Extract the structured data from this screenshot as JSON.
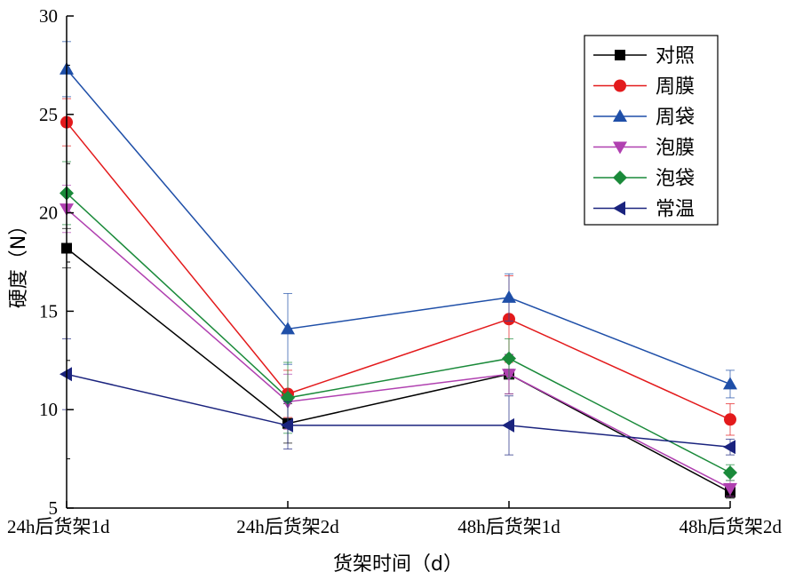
{
  "chart_data": {
    "type": "line",
    "xlabel": "货架时间（d）",
    "ylabel": "硬度（N）",
    "categories": [
      "24h后货架1d",
      "24h后货架2d",
      "48h后货架1d",
      "48h后货架2d"
    ],
    "ylim": [
      5,
      30
    ],
    "yticks": [
      5,
      10,
      15,
      20,
      25,
      30
    ],
    "grid": false,
    "legend_position": "top-right",
    "series": [
      {
        "name": "对照",
        "color": "#000000",
        "marker": "square",
        "values": [
          18.2,
          9.3,
          11.8,
          5.8
        ],
        "errors": [
          1.0,
          1.0,
          1.0,
          0.3
        ]
      },
      {
        "name": "周膜",
        "color": "#e31a1c",
        "marker": "circle",
        "values": [
          24.6,
          10.8,
          14.6,
          9.5
        ],
        "errors": [
          1.2,
          1.2,
          2.2,
          0.8
        ]
      },
      {
        "name": "周袋",
        "color": "#1f4fa8",
        "marker": "triangle-up",
        "values": [
          27.3,
          14.1,
          15.7,
          11.3
        ],
        "errors": [
          1.4,
          1.8,
          1.2,
          0.7
        ]
      },
      {
        "name": "泡膜",
        "color": "#b040b0",
        "marker": "triangle-down",
        "values": [
          20.2,
          10.4,
          11.8,
          6.0
        ],
        "errors": [
          1.2,
          1.4,
          1.0,
          0.4
        ]
      },
      {
        "name": "泡袋",
        "color": "#1a8a3a",
        "marker": "diamond",
        "values": [
          21.0,
          10.6,
          12.6,
          6.8
        ],
        "errors": [
          1.6,
          1.8,
          1.0,
          0.4
        ]
      },
      {
        "name": "常温",
        "color": "#1a237e",
        "marker": "triangle-left",
        "values": [
          11.8,
          9.2,
          9.2,
          8.1
        ],
        "errors": [
          1.8,
          1.2,
          1.5,
          0.4
        ]
      }
    ]
  }
}
